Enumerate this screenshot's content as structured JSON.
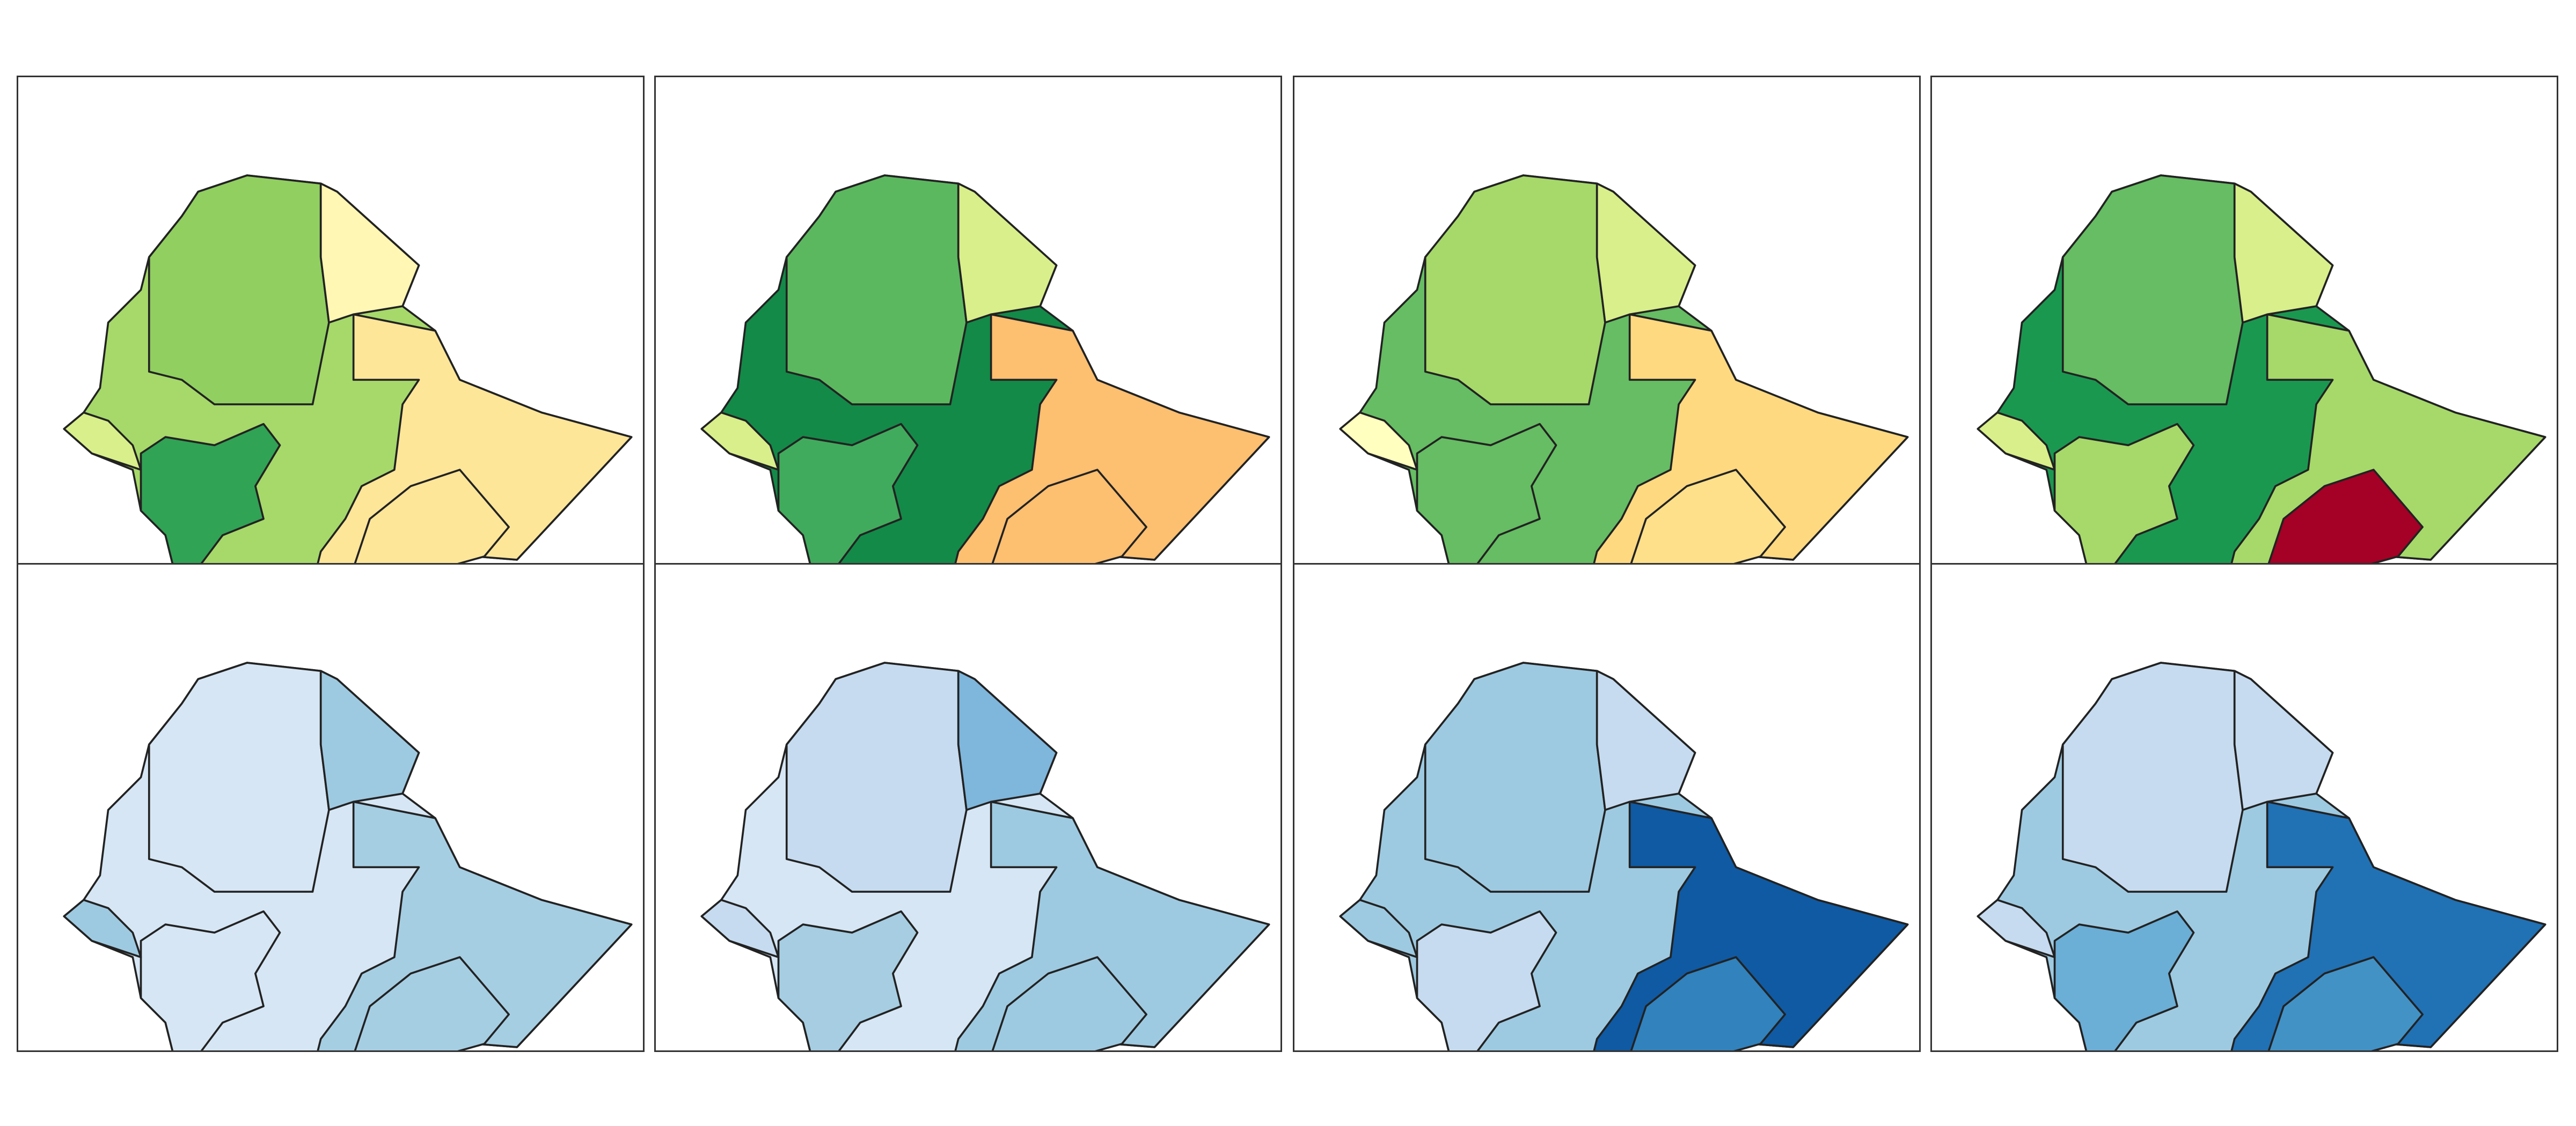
{
  "panels": [
    {
      "regions": {
        "base": "#a6d96a",
        "north": "#91cf60",
        "afar": "#fff7b3",
        "somali": "#fee699",
        "south-east": "#fee699",
        "southwest": "#31a354",
        "benishangul": "#d9ef8b"
      }
    },
    {
      "regions": {
        "base": "#138a48",
        "north": "#5cb85f",
        "afar": "#d9ef8b",
        "somali": "#fdbf70",
        "south-east": "#fdbf70",
        "southwest": "#41ab5d",
        "benishangul": "#d9ef8b"
      }
    },
    {
      "regions": {
        "base": "#66bd63",
        "north": "#a6d96a",
        "afar": "#d9ef8b",
        "somali": "#fed980",
        "south-east": "#fee08b",
        "southwest": "#66bd63",
        "benishangul": "#ffffbf"
      }
    },
    {
      "regions": {
        "base": "#1a9850",
        "north": "#66bd63",
        "afar": "#d9ef8b",
        "somali": "#a6d96a",
        "south-east": "#a50026",
        "southwest": "#a6d96a",
        "benishangul": "#d9ef8b"
      }
    },
    {
      "regions": {
        "base": "#d6e6f4",
        "north": "#d6e6f4",
        "afar": "#9ecae1",
        "somali": "#a6cee3",
        "south-east": "#a6cee3",
        "southwest": "#d6e6f4",
        "benishangul": "#9ecae1"
      }
    },
    {
      "regions": {
        "base": "#d6e6f4",
        "north": "#c6dbef",
        "afar": "#7fb6dc",
        "somali": "#9ecae1",
        "south-east": "#9ecae1",
        "southwest": "#a6cde2",
        "benishangul": "#c6dbef"
      }
    },
    {
      "regions": {
        "base": "#9ecae1",
        "north": "#9ecae1",
        "afar": "#c6dbef",
        "somali": "#0f5aa3",
        "south-east": "#3182bd",
        "southwest": "#c6dbef",
        "benishangul": "#9ecae1"
      }
    },
    {
      "regions": {
        "base": "#9ecae1",
        "north": "#c6dbef",
        "afar": "#c6dbef",
        "somali": "#2171b5",
        "south-east": "#4292c6",
        "southwest": "#6baed6",
        "benishangul": "#c6dbef"
      }
    }
  ]
}
